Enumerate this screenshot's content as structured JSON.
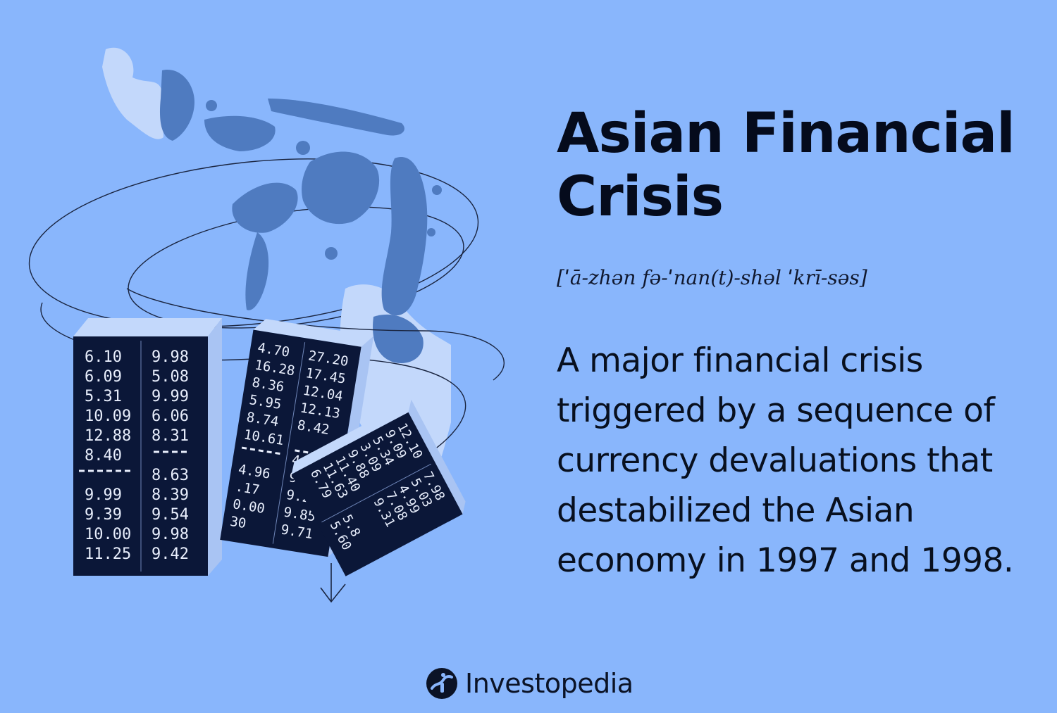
{
  "term": {
    "title_line1": "Asian Financial",
    "title_line2": "Crisis",
    "pronunciation": "[ˈā-zhən fə-ˈnan(t)-shəl ˈkrī-səs]",
    "definition": "A major financial crisis triggered by a sequence of currency devaluations that destabilized the Asian economy in 1997 and 1998."
  },
  "brand": {
    "name": "Investopedia",
    "icon": "investopedia-logo-icon"
  },
  "illustration": {
    "icon": "asia-map-illustration",
    "block1": {
      "col1": [
        "6.10",
        "6.09",
        "5.31",
        "10.09",
        "12.88",
        "8.40",
        "9.99",
        "9.39",
        "10.00",
        "11.25"
      ],
      "col2": [
        "9.98",
        "5.08",
        "9.99",
        "6.06",
        "8.31",
        "8.63",
        "8.39",
        "9.54",
        "9.98",
        "9.42"
      ]
    },
    "block2": {
      "col1": [
        "4.70",
        "16.28",
        "8.36",
        "5.95",
        "8.74",
        "10.61",
        "4.96",
        ".17",
        "0.00",
        "30"
      ],
      "col2": [
        "27.20",
        "17.45",
        "12.04",
        "12.13",
        "8.42",
        "4.77",
        "9.62",
        "9.23",
        "9.85",
        "9.71"
      ]
    },
    "block3": {
      "col1": [
        "12.10",
        "9.09",
        "5.34",
        "3.09",
        "9.88",
        "11.40",
        "11.63",
        "6.79",
        "5.60",
        "5.8"
      ],
      "col2": [
        "7.98",
        "5.03",
        "4.99",
        "7.08",
        "9.31"
      ]
    }
  },
  "colors": {
    "background": "#89b6fc",
    "map_dark": "#4f7bc0",
    "map_light": "#c3d8fb",
    "block": "#0b1738",
    "text": "#050b1c"
  }
}
